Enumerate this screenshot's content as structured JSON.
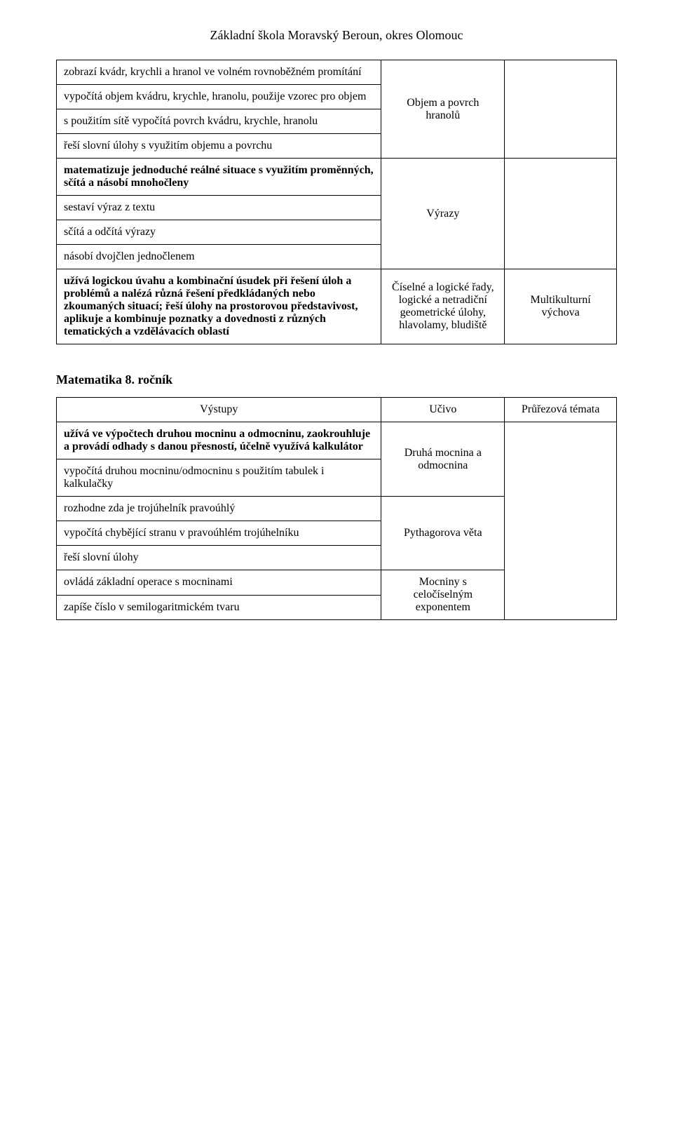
{
  "pageTitle": "Základní škola Moravský Beroun, okres Olomouc",
  "table1": {
    "rows": [
      {
        "outputs": [
          {
            "text": "zobrazí kvádr, krychli a hranol ve volném rovnoběžném promítání",
            "bold": false
          },
          {
            "text": "vypočítá objem kvádru, krychle, hranolu, použije vzorec pro objem",
            "bold": false
          },
          {
            "text": "s použitím sítě vypočítá povrch kvádru, krychle, hranolu",
            "bold": false
          },
          {
            "text": "řeší slovní úlohy s využitím objemu a povrchu",
            "bold": false
          }
        ],
        "topic": "Objem a povrch hranolů",
        "cross": ""
      },
      {
        "outputs": [
          {
            "text": "matematizuje jednoduché reálné situace s využitím proměnných, sčítá a násobí mnohočleny",
            "bold": true
          },
          {
            "text": "sestaví výraz z textu",
            "bold": false
          },
          {
            "text": "sčítá a odčítá výrazy",
            "bold": false
          },
          {
            "text": "násobí dvojčlen jednočlenem",
            "bold": false
          }
        ],
        "topic": "Výrazy",
        "cross": ""
      },
      {
        "outputs": [
          {
            "text": "užívá logickou úvahu a kombinační úsudek při řešení úloh a problémů a nalézá různá řešení předkládaných nebo zkoumaných situací; řeší úlohy na prostorovou představivost, aplikuje a kombinuje poznatky a dovednosti z různých tematických a vzdělávacích oblastí",
            "bold": true
          }
        ],
        "topic": "Číselné a logické řady, logické a netradiční geometrické úlohy, hlavolamy, bludiště",
        "cross": "Multikulturní výchova"
      }
    ]
  },
  "gradeHeading": "Matematika 8. ročník",
  "table2": {
    "headers": {
      "outputs": "Výstupy",
      "topic": "Učivo",
      "cross": "Průřezová témata"
    },
    "rows": [
      {
        "outputs": [
          {
            "text": "užívá ve výpočtech druhou  mocninu a odmocninu, zaokrouhluje a provádí odhady s danou přesností, účelně využívá kalkulátor",
            "bold": true
          },
          {
            "text": "vypočítá druhou mocninu/odmocninu s použitím tabulek i kalkulačky",
            "bold": false
          }
        ],
        "topic": "Druhá mocnina a odmocnina",
        "cross": "",
        "crossRowspan": 3
      },
      {
        "outputs": [
          {
            "text": "rozhodne zda je trojúhelník pravoúhlý",
            "bold": false
          },
          {
            "text": "vypočítá chybějící stranu v pravoúhlém trojúhelníku",
            "bold": false
          },
          {
            "text": "řeší slovní úlohy",
            "bold": false
          }
        ],
        "topic": "Pythagorova věta",
        "cross": null
      },
      {
        "outputs": [
          {
            "text": "ovládá základní operace s mocninami",
            "bold": false
          },
          {
            "text": "zapíše číslo v semilogaritmickém tvaru",
            "bold": false
          }
        ],
        "topic": "Mocniny s celočíselným exponentem",
        "cross": null
      }
    ]
  }
}
